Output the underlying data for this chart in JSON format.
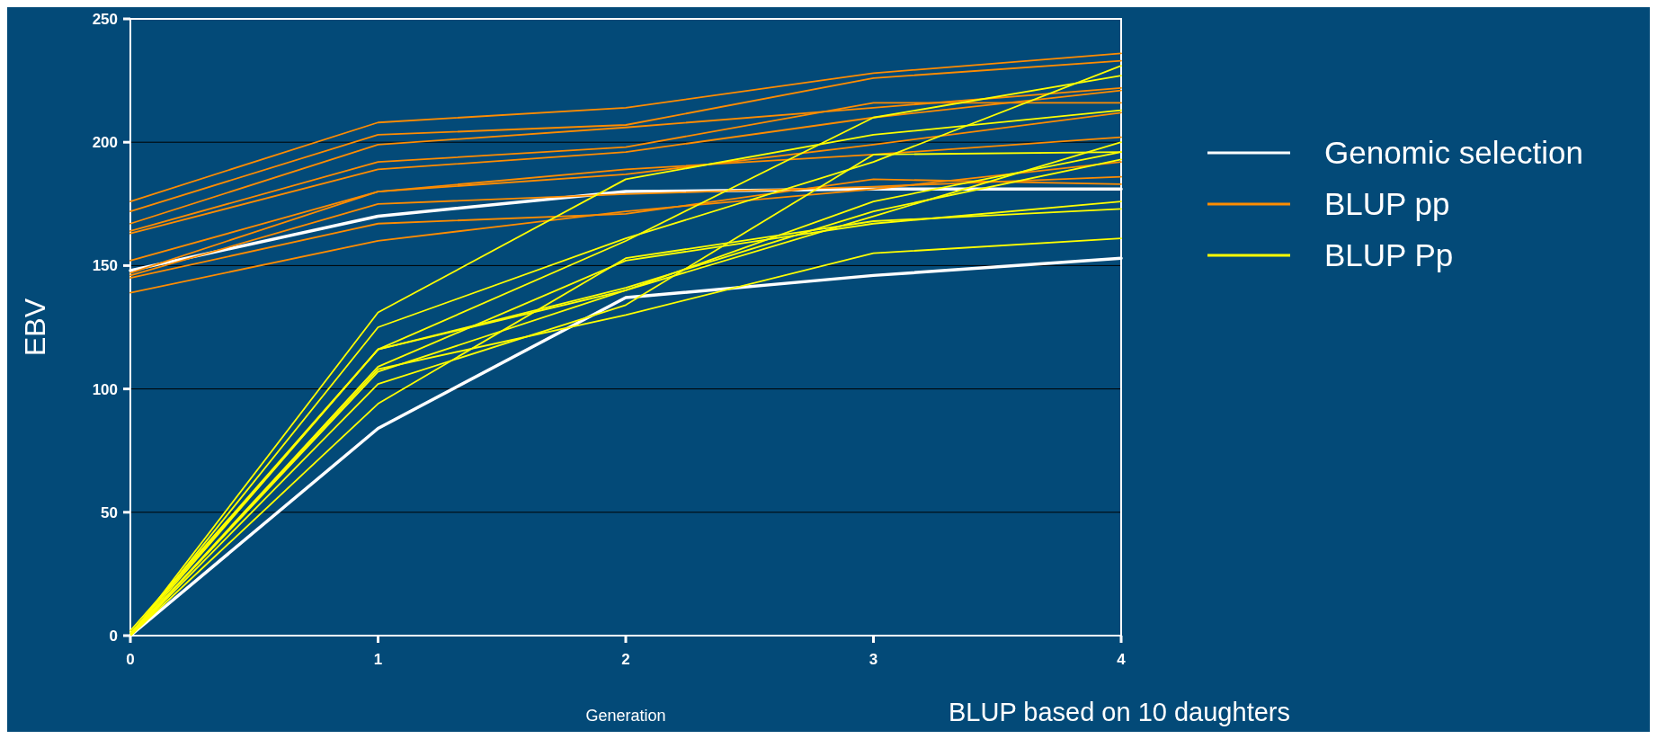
{
  "chart_data": {
    "type": "line",
    "xlabel": "Generation",
    "ylabel": "EBV",
    "x": [
      0,
      1,
      2,
      3,
      4
    ],
    "xlim": [
      0,
      4
    ],
    "xticks": [
      0,
      1,
      2,
      3,
      4
    ],
    "ylim": [
      0,
      250
    ],
    "yticks": [
      0,
      50,
      100,
      150,
      200,
      250
    ],
    "grid": "y",
    "legend": "right",
    "marker": "none",
    "line_style": "solid",
    "annotations": [
      "BLUP based on 10 daughters"
    ],
    "series": [
      {
        "name": "Genomic selection",
        "color": "#ffffff",
        "values": [
          148,
          170,
          180,
          181,
          181
        ]
      },
      {
        "color": "#ffffff",
        "values": [
          0,
          84,
          137,
          146,
          153
        ]
      },
      {
        "name": "BLUP pp",
        "color": "#ff8c00",
        "values": [
          176,
          208,
          214,
          228,
          236
        ]
      },
      {
        "color": "#ff8c00",
        "values": [
          172,
          203,
          207,
          226,
          233
        ]
      },
      {
        "color": "#ff8c00",
        "values": [
          167,
          199,
          206,
          214,
          222
        ]
      },
      {
        "color": "#ff8c00",
        "values": [
          164,
          192,
          198,
          216,
          216
        ]
      },
      {
        "color": "#ff8c00",
        "values": [
          163,
          189,
          196,
          210,
          221
        ]
      },
      {
        "color": "#ff8c00",
        "values": [
          152,
          180,
          189,
          195,
          202
        ]
      },
      {
        "color": "#ff8c00",
        "values": [
          147,
          180,
          187,
          199,
          212
        ]
      },
      {
        "color": "#ff8c00",
        "values": [
          146,
          175,
          179,
          182,
          186
        ]
      },
      {
        "color": "#ff8c00",
        "values": [
          145,
          167,
          171,
          185,
          183
        ]
      },
      {
        "color": "#ff8c00",
        "values": [
          139,
          160,
          172,
          181,
          192
        ]
      },
      {
        "name": "BLUP Pp",
        "color": "#ffff00",
        "values": [
          0,
          131,
          185,
          203,
          213
        ]
      },
      {
        "color": "#ffff00",
        "values": [
          0,
          125,
          161,
          192,
          231
        ]
      },
      {
        "color": "#ffff00",
        "values": [
          2,
          116,
          160,
          210,
          227
        ]
      },
      {
        "color": "#ffff00",
        "values": [
          1,
          116,
          140,
          170,
          200
        ]
      },
      {
        "color": "#ffff00",
        "values": [
          0,
          109,
          152,
          167,
          176
        ]
      },
      {
        "color": "#ffff00",
        "values": [
          0,
          107,
          140,
          176,
          196
        ]
      },
      {
        "color": "#ffff00",
        "values": [
          0,
          102,
          134,
          195,
          196
        ]
      },
      {
        "color": "#ffff00",
        "values": [
          0,
          94,
          153,
          168,
          173
        ]
      },
      {
        "color": "#ffff00",
        "values": [
          0,
          108,
          130,
          155,
          161
        ]
      },
      {
        "color": "#ffff00",
        "values": [
          0,
          116,
          141,
          172,
          193
        ]
      }
    ]
  }
}
